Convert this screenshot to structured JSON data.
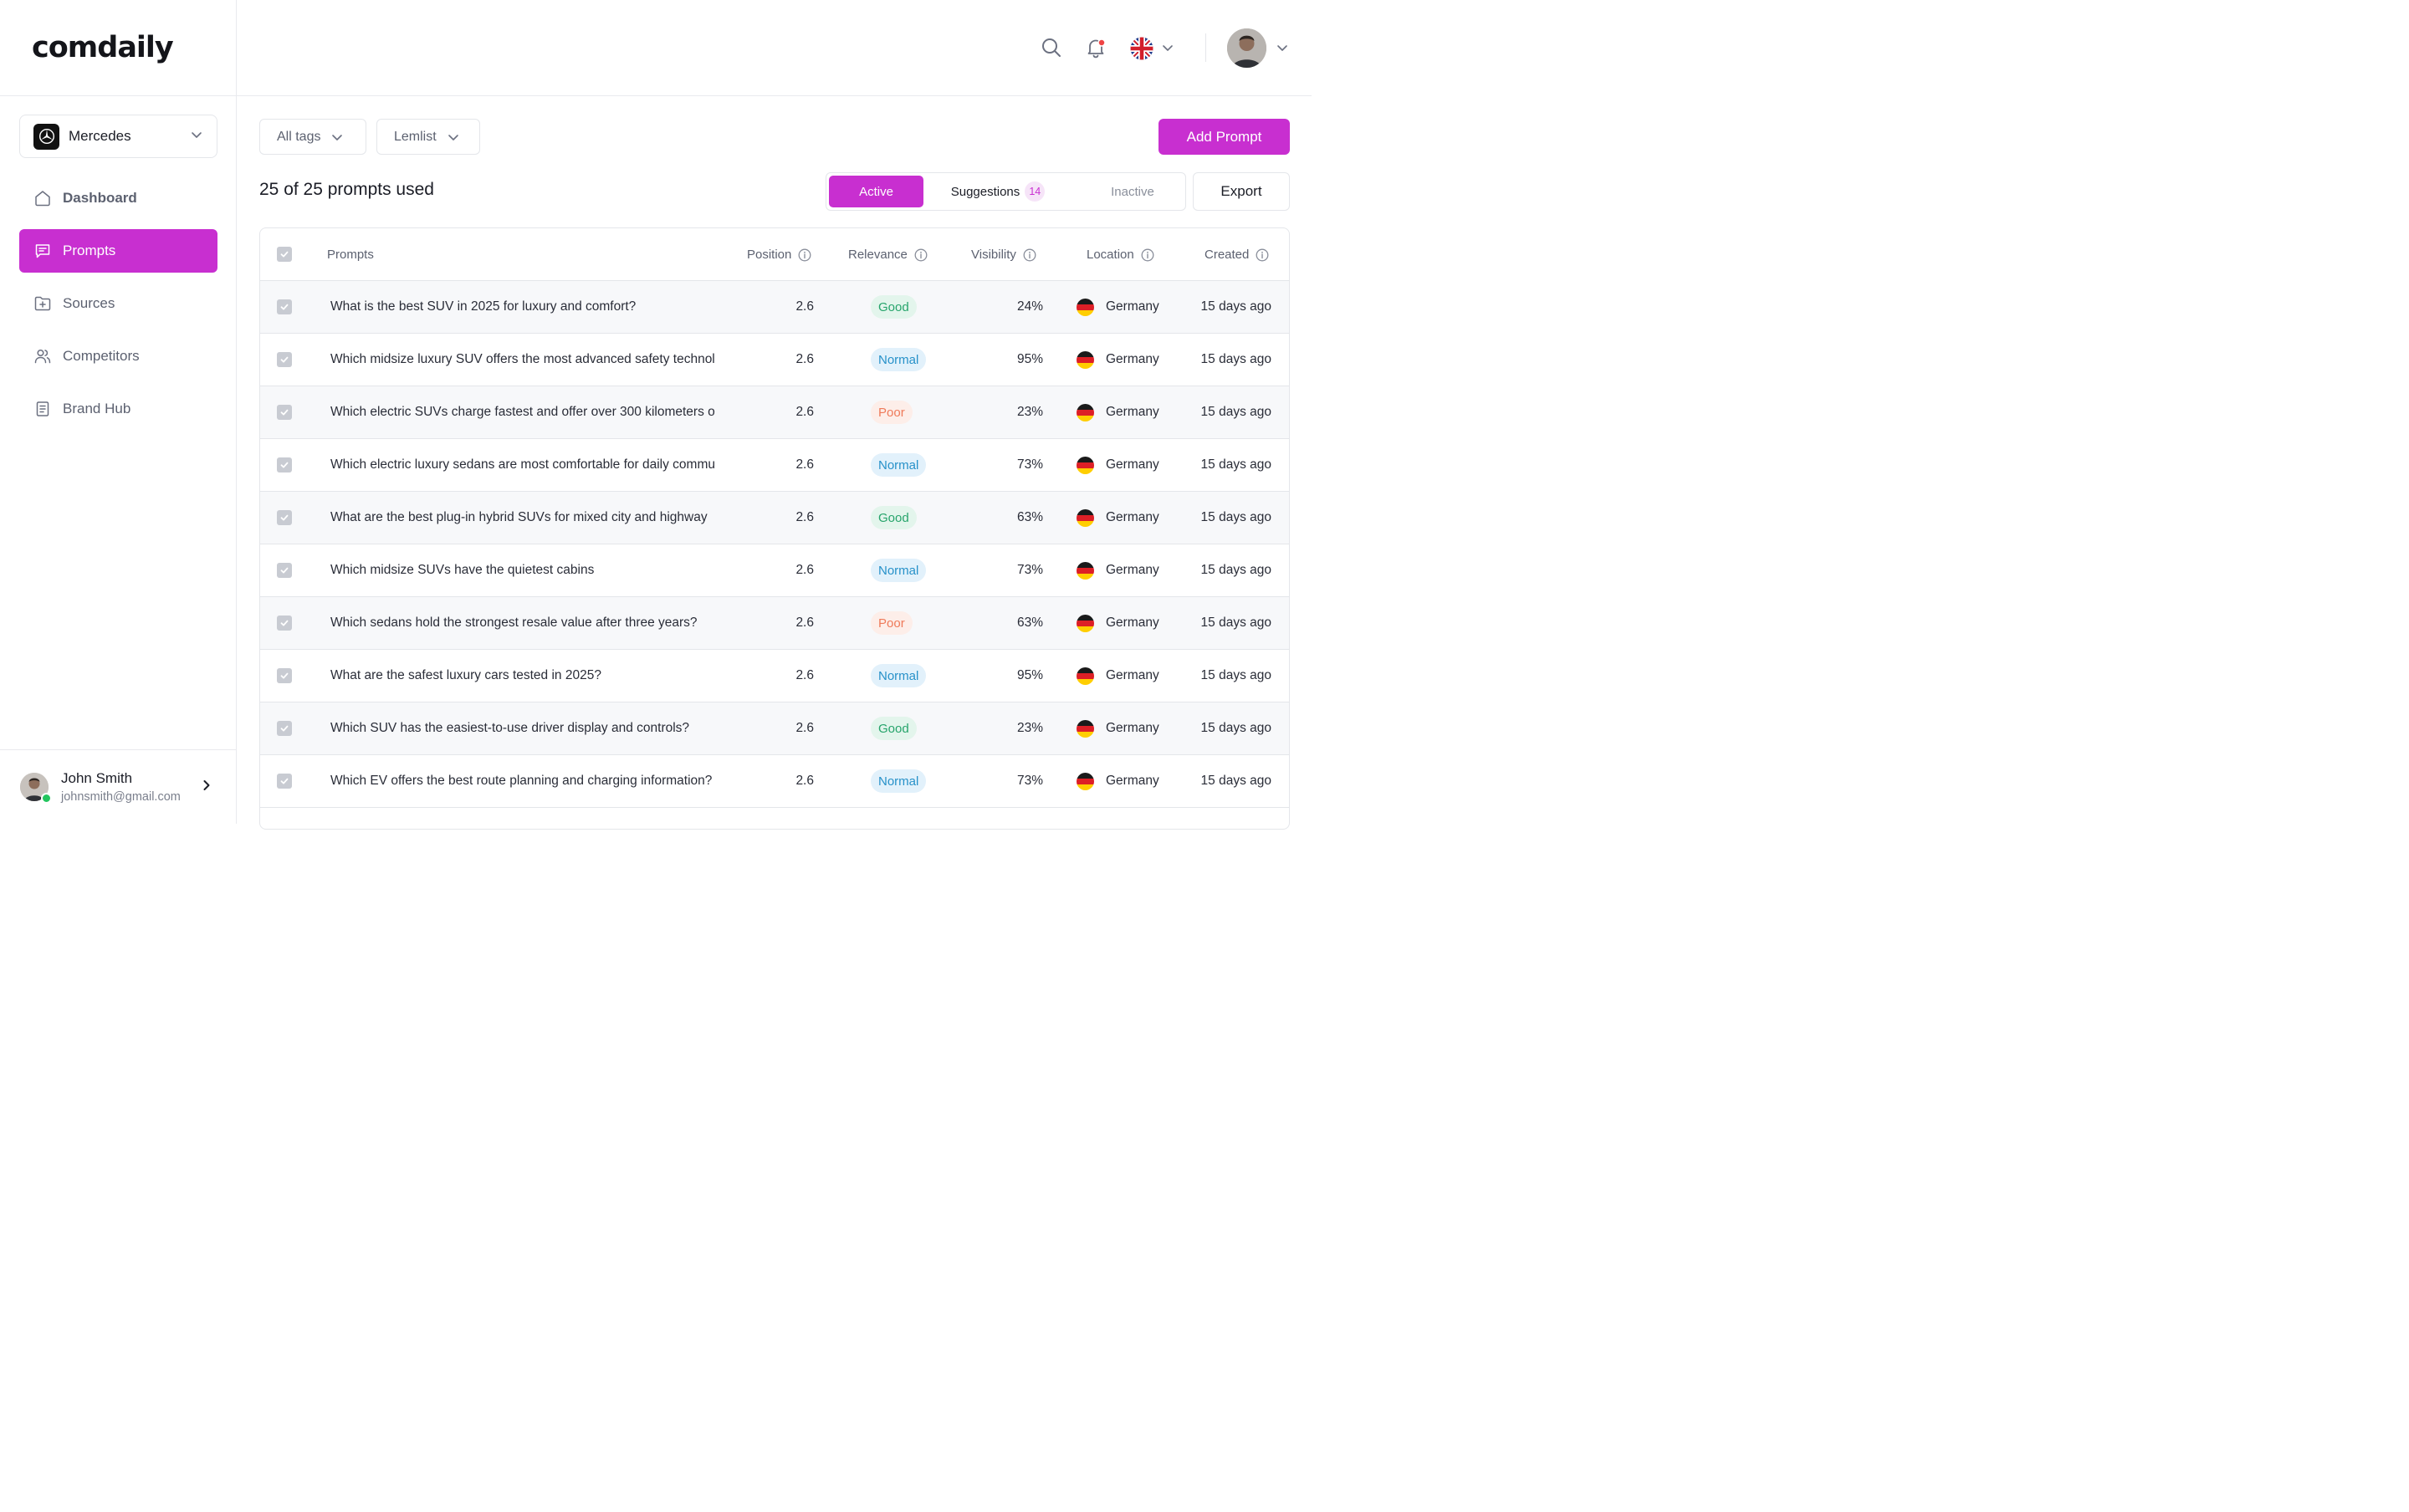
{
  "app": {
    "logo_text": "comdaily",
    "accent_color": "#c82fd0"
  },
  "sidebar": {
    "brand_select": {
      "value": "Mercedes",
      "icon": "mercedes-star-icon"
    },
    "items": [
      {
        "label": "Dashboard",
        "icon": "home-icon",
        "active": false
      },
      {
        "label": "Prompts",
        "icon": "chat-icon",
        "active": true
      },
      {
        "label": "Sources",
        "icon": "folder-plus-icon",
        "active": false
      },
      {
        "label": "Competitors",
        "icon": "users-icon",
        "active": false
      },
      {
        "label": "Brand Hub",
        "icon": "document-icon",
        "active": false
      }
    ],
    "user": {
      "name": "John Smith",
      "email": "johnsmith@gmail.com",
      "status": "online"
    }
  },
  "topbar": {
    "icons": [
      "search-icon",
      "bell-icon",
      "uk-flag-icon",
      "chevron-down-icon",
      "avatar",
      "chevron-down-icon"
    ],
    "language": "English (UK)"
  },
  "filters": {
    "tags_label": "All tags",
    "campaign_label": "Lemlist",
    "add_button": "Add Prompt",
    "export_button": "Export"
  },
  "summary": {
    "count_text": "25 of 25 prompts used"
  },
  "tabs": {
    "active": "Active",
    "suggestions": "Suggestions",
    "suggestions_count": "14",
    "inactive": "Inactive"
  },
  "table": {
    "columns": {
      "prompts": "Prompts",
      "position": "Position",
      "relevance": "Relevance",
      "visibility": "Visibility",
      "location": "Location",
      "created": "Created"
    },
    "rows": [
      {
        "prompt": "What is the best SUV in 2025 for luxury and comfort?",
        "position": "2.6",
        "relevance": "Good",
        "visibility": "24%",
        "location": "Germany",
        "created": "15 days ago"
      },
      {
        "prompt": "Which midsize luxury SUV offers the most advanced safety technol",
        "position": "2.6",
        "relevance": "Normal",
        "visibility": "95%",
        "location": "Germany",
        "created": "15 days ago"
      },
      {
        "prompt": "Which electric SUVs charge fastest and offer over 300 kilometers o",
        "position": "2.6",
        "relevance": "Poor",
        "visibility": "23%",
        "location": "Germany",
        "created": "15 days ago"
      },
      {
        "prompt": "Which electric luxury sedans are most comfortable for daily commu",
        "position": "2.6",
        "relevance": "Normal",
        "visibility": "73%",
        "location": "Germany",
        "created": "15 days ago"
      },
      {
        "prompt": "What are the best plug-in hybrid SUVs for mixed city and highway",
        "position": "2.6",
        "relevance": "Good",
        "visibility": "63%",
        "location": "Germany",
        "created": "15 days ago"
      },
      {
        "prompt": "Which midsize SUVs have the quietest cabins",
        "position": "2.6",
        "relevance": "Normal",
        "visibility": "73%",
        "location": "Germany",
        "created": "15 days ago"
      },
      {
        "prompt": "Which sedans hold the strongest resale value after three years?",
        "position": "2.6",
        "relevance": "Poor",
        "visibility": "63%",
        "location": "Germany",
        "created": "15 days ago"
      },
      {
        "prompt": " What are the safest luxury cars tested in 2025?",
        "position": "2.6",
        "relevance": "Normal",
        "visibility": "95%",
        "location": "Germany",
        "created": "15 days ago"
      },
      {
        "prompt": " Which SUV has the easiest-to-use driver display and controls?",
        "position": "2.6",
        "relevance": "Good",
        "visibility": "23%",
        "location": "Germany",
        "created": "15 days ago"
      },
      {
        "prompt": "Which EV offers the best route planning and charging information?",
        "position": "2.6",
        "relevance": "Normal",
        "visibility": "73%",
        "location": "Germany",
        "created": "15 days ago"
      }
    ]
  }
}
